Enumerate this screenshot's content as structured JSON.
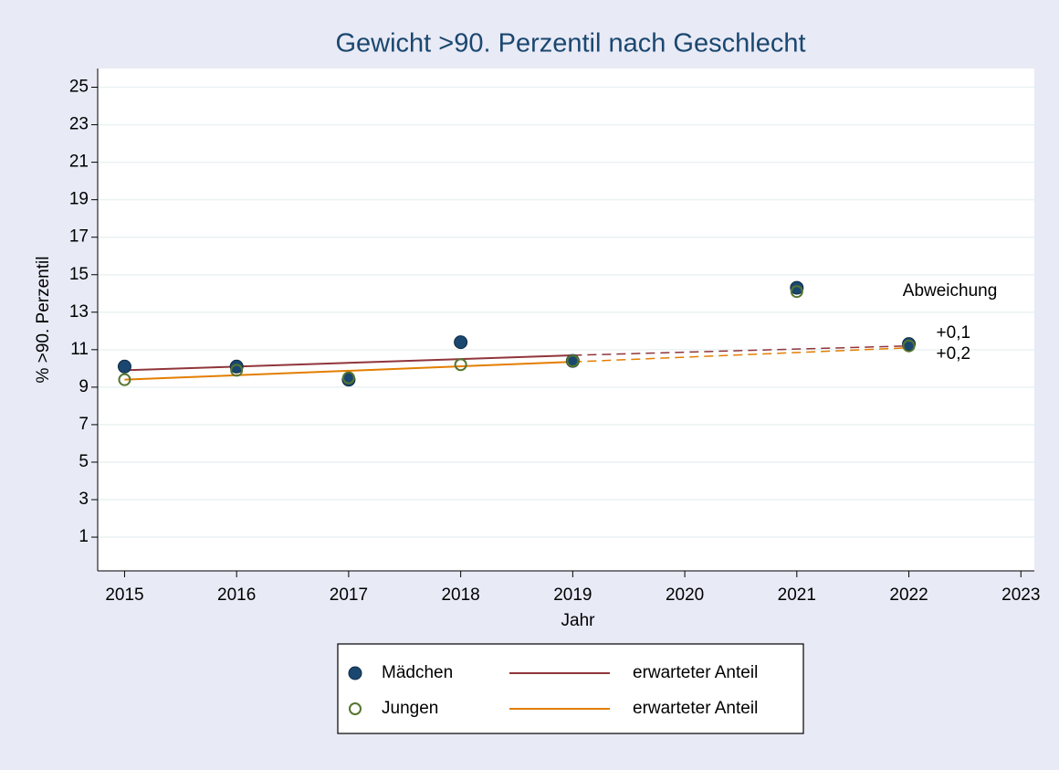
{
  "chart_data": {
    "type": "scatter",
    "title": "Gewicht >90. Perzentil nach Geschlecht",
    "x_label": "Jahr",
    "y_label": "% >90. Perzentil",
    "xlim": [
      2014.76,
      2023.12
    ],
    "ylim": [
      -0.8,
      26
    ],
    "xticks": [
      2015,
      2016,
      2017,
      2018,
      2019,
      2020,
      2021,
      2022,
      2023
    ],
    "yticks": [
      1,
      3,
      5,
      7,
      9,
      11,
      13,
      15,
      17,
      19,
      21,
      23,
      25
    ],
    "grid": true,
    "series": [
      {
        "name": "Mädchen",
        "color": "#1a476f",
        "marker": "filled",
        "x": [
          2015,
          2016,
          2017,
          2018,
          2019,
          2021,
          2022
        ],
        "values": [
          10.1,
          10.1,
          9.4,
          11.4,
          10.4,
          14.3,
          11.3
        ]
      },
      {
        "name": "Jungen",
        "color": "#55752f",
        "marker": "hollow",
        "x": [
          2015,
          2016,
          2017,
          2018,
          2019,
          2021,
          2022
        ],
        "values": [
          9.4,
          9.9,
          9.5,
          10.2,
          10.4,
          14.1,
          11.2
        ]
      }
    ],
    "trend_lines": [
      {
        "name": "erwarteter Anteil",
        "color": "#90353b",
        "x": [
          2015,
          2019
        ],
        "values": [
          9.9,
          10.7
        ],
        "forecast_x": [
          2019,
          2022
        ],
        "forecast_values": [
          10.7,
          11.2
        ]
      },
      {
        "name": "erwarteter Anteil",
        "color": "#e37e00",
        "x": [
          2015,
          2019
        ],
        "values": [
          9.4,
          10.35
        ],
        "forecast_x": [
          2019,
          2022
        ],
        "forecast_values": [
          10.35,
          11.1
        ]
      }
    ],
    "annotations": {
      "title": "Abweichung",
      "labels": [
        "+0,1",
        "+0,2"
      ]
    }
  }
}
